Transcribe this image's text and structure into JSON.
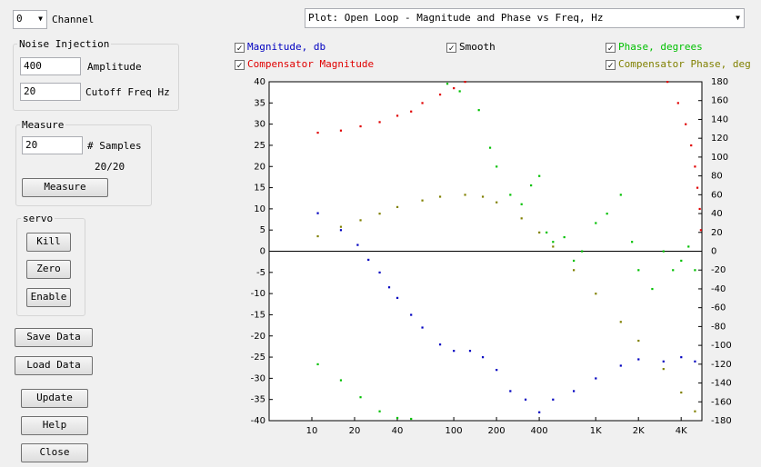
{
  "channel": {
    "value": "0",
    "label": "Channel"
  },
  "plot_select": "Plot: Open Loop - Magnitude and Phase vs Freq, Hz",
  "noise_injection": {
    "title": "Noise Injection",
    "amplitude": {
      "value": "400",
      "label": "Amplitude"
    },
    "cutoff": {
      "value": "20",
      "label": "Cutoff Freq Hz"
    }
  },
  "measure": {
    "title": "Measure",
    "samples": {
      "value": "20",
      "label": "# Samples"
    },
    "progress": "20/20",
    "button": "Measure"
  },
  "servo": {
    "title": "servo",
    "buttons": [
      "Kill",
      "Zero",
      "Enable"
    ]
  },
  "buttons": [
    "Save Data",
    "Load Data",
    "Update",
    "Help",
    "Close"
  ],
  "smooth": {
    "label": "Smooth",
    "checked": true
  },
  "chart_data": {
    "type": "scatter",
    "xscale": "log",
    "xlim": [
      5,
      5600
    ],
    "xticks": [
      10,
      20,
      40,
      100,
      200,
      400,
      {
        "value": 1000,
        "label": "1K"
      },
      {
        "value": 2000,
        "label": "2K"
      },
      {
        "value": 4000,
        "label": "4K"
      }
    ],
    "ylim": [
      -40,
      40
    ],
    "yticks": [
      -40,
      -35,
      -30,
      -25,
      -20,
      -15,
      -10,
      -5,
      0,
      5,
      10,
      15,
      20,
      25,
      30,
      35,
      40
    ],
    "y2lim": [
      -180,
      180
    ],
    "y2ticks": [
      -180,
      -160,
      -140,
      -120,
      -100,
      -80,
      -60,
      -40,
      -20,
      0,
      20,
      40,
      60,
      80,
      100,
      120,
      140,
      160,
      180
    ],
    "series": [
      {
        "name": "Magnitude, db",
        "color": "#0000c0",
        "checked": true,
        "x": [
          11,
          16,
          21,
          25,
          30,
          35,
          40,
          50,
          60,
          80,
          100,
          130,
          160,
          200,
          250,
          320,
          400,
          500,
          700,
          1000,
          1500,
          2000,
          3000,
          4000,
          5000
        ],
        "values": [
          9,
          5,
          1.5,
          -2,
          -5,
          -8.5,
          -11,
          -15,
          -18,
          -22,
          -23.5,
          -23.5,
          -25,
          -28,
          -33,
          -35,
          -38,
          -35,
          -33,
          -30,
          -27,
          -25.5,
          -26,
          -25,
          -26
        ]
      },
      {
        "name": "Compensator Magnitude",
        "color": "#e00000",
        "checked": true,
        "x": [
          11,
          16,
          22,
          30,
          40,
          50,
          60,
          80,
          100,
          120,
          3200,
          3800,
          4300,
          4700,
          5000,
          5200,
          5400,
          5500
        ],
        "values": [
          28,
          28.5,
          29.5,
          30.5,
          32,
          33,
          35,
          37,
          38.5,
          40,
          40,
          35,
          30,
          25,
          20,
          15,
          10,
          5
        ]
      },
      {
        "name": "Phase, degrees",
        "color": "#00c000",
        "checked": true,
        "axis": "y2",
        "x": [
          11,
          16,
          22,
          30,
          40,
          50,
          90,
          110,
          150,
          180,
          200,
          250,
          300,
          350,
          400,
          450,
          500,
          600,
          700,
          800,
          1000,
          1200,
          1500,
          1800,
          2000,
          2500,
          3000,
          3500,
          4000,
          4500,
          5000
        ],
        "values": [
          -120,
          -137,
          -155,
          -170,
          -177,
          -178,
          178,
          170,
          150,
          110,
          90,
          60,
          50,
          70,
          80,
          20,
          10,
          15,
          -10,
          0,
          30,
          40,
          60,
          10,
          -20,
          -40,
          0,
          -20,
          -10,
          5,
          -20
        ]
      },
      {
        "name": "Compensator Phase, deg",
        "color": "#808000",
        "checked": true,
        "axis": "y2",
        "x": [
          11,
          16,
          22,
          30,
          40,
          60,
          80,
          120,
          160,
          200,
          300,
          400,
          500,
          700,
          1000,
          1500,
          2000,
          3000,
          4000,
          5000
        ],
        "values": [
          16,
          26,
          33,
          40,
          47,
          54,
          58,
          60,
          58,
          52,
          35,
          20,
          5,
          -20,
          -45,
          -75,
          -95,
          -125,
          -150,
          -170
        ]
      }
    ]
  }
}
